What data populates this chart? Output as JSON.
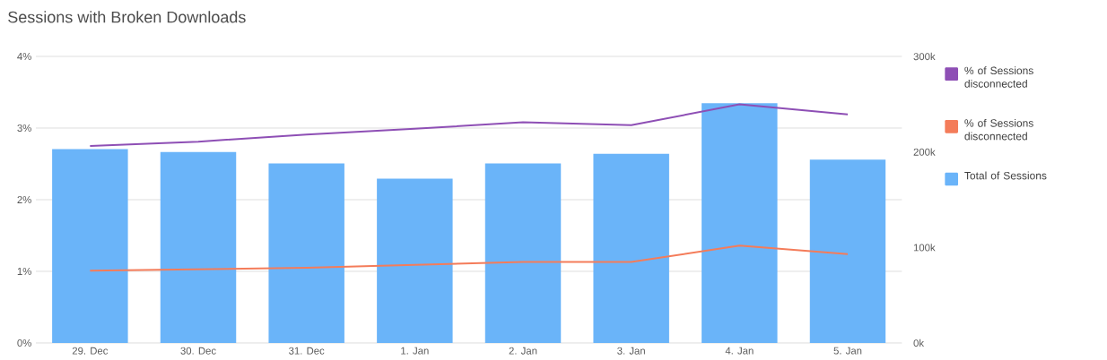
{
  "chart_data": {
    "type": "bar",
    "title": "Sessions with Broken Downloads",
    "categories": [
      "29. Dec",
      "30. Dec",
      "31. Dec",
      "1. Jan",
      "2. Jan",
      "3. Jan",
      "4. Jan",
      "5. Jan"
    ],
    "ylim": [
      0,
      4
    ],
    "yticks": [
      {
        "value": 0,
        "label": "0%"
      },
      {
        "value": 1,
        "label": "1%"
      },
      {
        "value": 2,
        "label": "2%"
      },
      {
        "value": 3,
        "label": "3%"
      },
      {
        "value": 4,
        "label": "4%"
      }
    ],
    "y2lim": [
      0,
      300
    ],
    "y2ticks": [
      {
        "value": 0,
        "label": "0k"
      },
      {
        "value": 100,
        "label": "100k"
      },
      {
        "value": 200,
        "label": "200k"
      },
      {
        "value": 300,
        "label": "300k"
      }
    ],
    "grid": "y",
    "legend": "right",
    "series": [
      {
        "name": "% of Sessions disconnected",
        "type": "line",
        "color": "#8e4fb5",
        "values": [
          2.75,
          2.81,
          2.91,
          2.99,
          3.08,
          3.04,
          3.33,
          3.19
        ]
      },
      {
        "name": "% of Sessions disconnected",
        "type": "line",
        "color": "#f47c5a",
        "values": [
          1.01,
          1.03,
          1.05,
          1.09,
          1.13,
          1.13,
          1.36,
          1.24
        ]
      },
      {
        "name": "Total of Sessions",
        "axis": "y2",
        "color": "#6ab4f9",
        "values": [
          203,
          200,
          188,
          172,
          188,
          198,
          251,
          192
        ]
      }
    ]
  }
}
